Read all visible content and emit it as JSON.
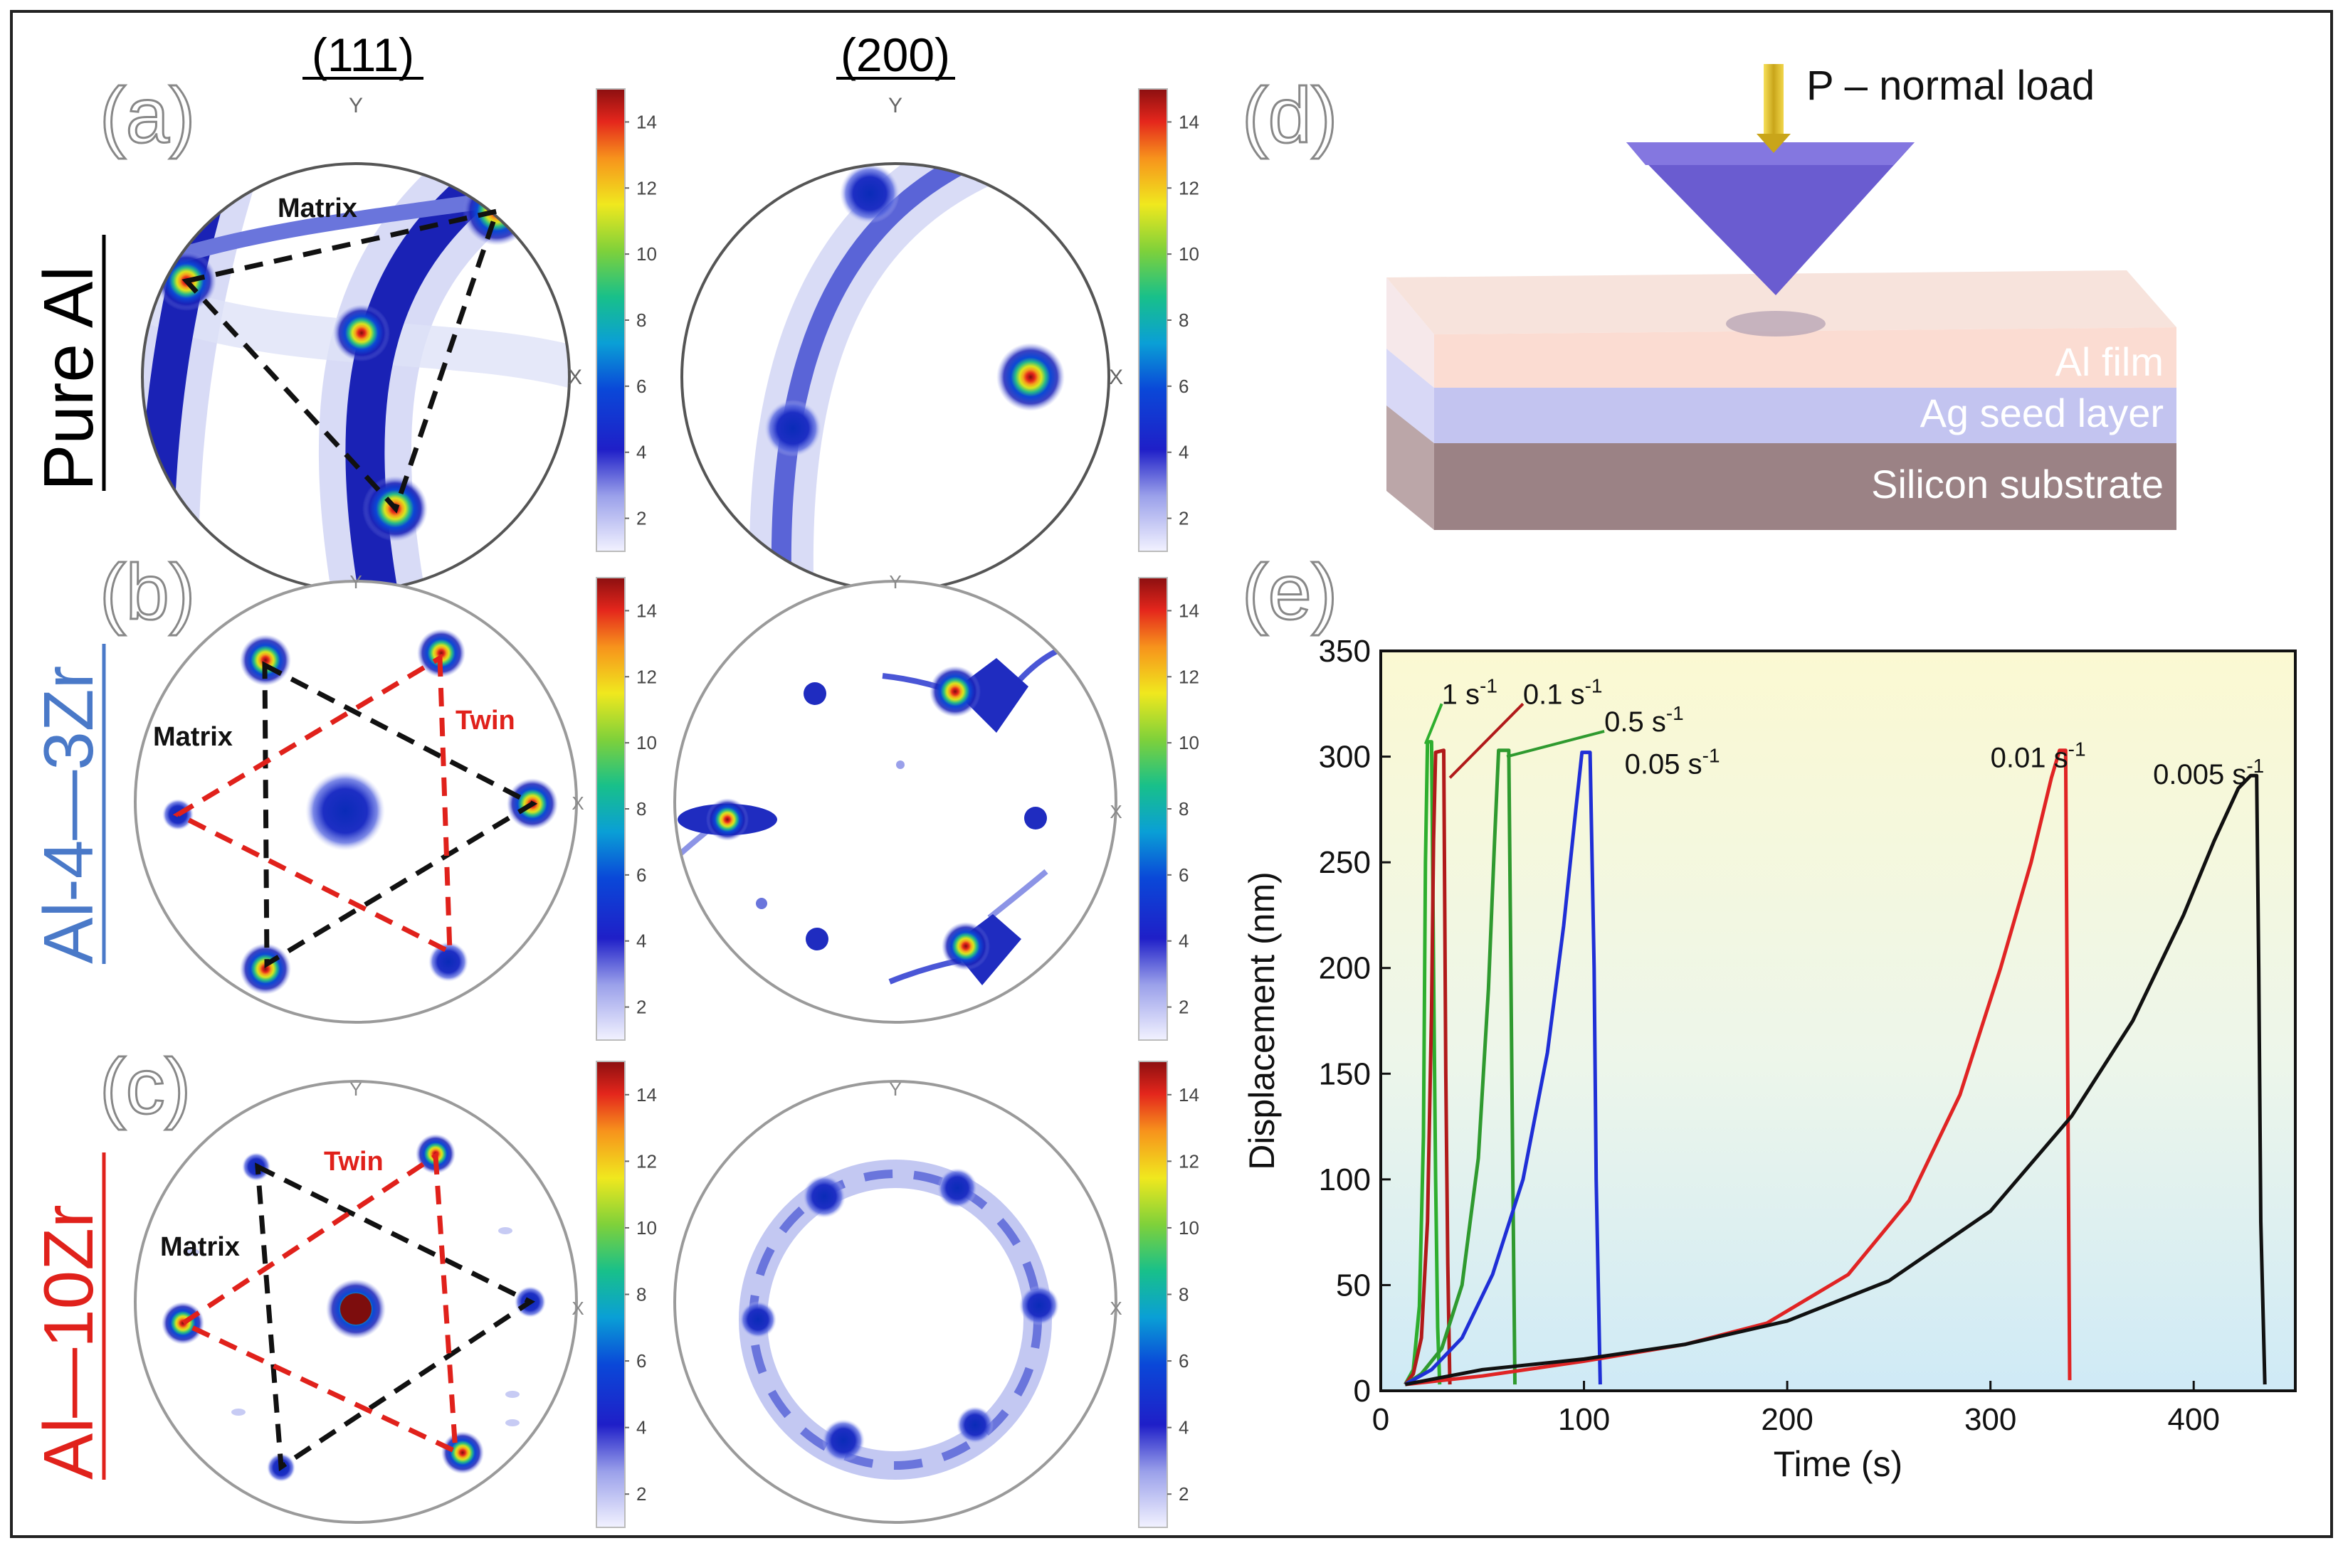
{
  "columns": {
    "c111": "(111)",
    "c200": "(200)"
  },
  "panel_labels": {
    "a": "(a)",
    "b": "(b)",
    "c": "(c)",
    "d": "(d)",
    "e": "(e)"
  },
  "rows": {
    "a": {
      "name": "Pure Al",
      "color": "#000000"
    },
    "b": {
      "name": "Al-4—3Zr",
      "color": "#4a79c8"
    },
    "c": {
      "name": "Al—10Zr",
      "color": "#e0211b"
    }
  },
  "pole_axis": {
    "y": "Y",
    "x": "X"
  },
  "annotations": {
    "matrix": "Matrix",
    "twin": "Twin"
  },
  "colorbar": {
    "ticks": [
      "14",
      "12",
      "10",
      "8",
      "6",
      "4",
      "2"
    ],
    "min": 1,
    "max": 15
  },
  "schematic": {
    "load_label": "P – normal load",
    "layers": [
      "Al film",
      "Ag seed layer",
      "Silicon substrate"
    ]
  },
  "colors": {
    "matrix_line": "#111111",
    "twin_line": "#e0211b",
    "curve_1": "#2eae2e",
    "curve_01": "#b11a1a",
    "curve_05": "#2f9a2f",
    "curve_005_fast": "#1f2fd6",
    "curve_001": "#e02424",
    "curve_0005": "#111111"
  },
  "chart_data": {
    "type": "line",
    "xlabel": "Time (s)",
    "ylabel": "Displacement (nm)",
    "xlim": [
      0,
      450
    ],
    "ylim": [
      0,
      350
    ],
    "x_ticks": [
      0,
      100,
      200,
      300,
      400
    ],
    "y_ticks": [
      0,
      50,
      100,
      150,
      200,
      250,
      300,
      350
    ],
    "series": [
      {
        "name": "1 s⁻¹",
        "rate": "1",
        "color": "#2eae2e",
        "points": [
          [
            12,
            3
          ],
          [
            16,
            10
          ],
          [
            19,
            40
          ],
          [
            21,
            120
          ],
          [
            22,
            250
          ],
          [
            23,
            307
          ],
          [
            25,
            307
          ],
          [
            26,
            200
          ],
          [
            27,
            100
          ],
          [
            28,
            30
          ],
          [
            29,
            3
          ]
        ]
      },
      {
        "name": "0.1 s⁻¹",
        "rate": "0.1",
        "color": "#b11a1a",
        "points": [
          [
            12,
            3
          ],
          [
            16,
            8
          ],
          [
            20,
            25
          ],
          [
            23,
            80
          ],
          [
            25,
            180
          ],
          [
            26,
            260
          ],
          [
            27,
            302
          ],
          [
            31,
            303
          ],
          [
            32,
            150
          ],
          [
            33,
            60
          ],
          [
            34,
            3
          ]
        ]
      },
      {
        "name": "0.5 s⁻¹",
        "rate": "0.5",
        "color": "#2f9a2f",
        "points": [
          [
            12,
            3
          ],
          [
            20,
            8
          ],
          [
            30,
            20
          ],
          [
            40,
            50
          ],
          [
            48,
            110
          ],
          [
            53,
            190
          ],
          [
            56,
            260
          ],
          [
            58,
            303
          ],
          [
            63,
            303
          ],
          [
            64,
            200
          ],
          [
            65,
            100
          ],
          [
            66,
            3
          ]
        ]
      },
      {
        "name": "0.05 s⁻¹",
        "rate": "0.05",
        "color": "#1f2fd6",
        "points": [
          [
            12,
            3
          ],
          [
            25,
            10
          ],
          [
            40,
            25
          ],
          [
            55,
            55
          ],
          [
            70,
            100
          ],
          [
            82,
            160
          ],
          [
            90,
            220
          ],
          [
            96,
            275
          ],
          [
            99,
            302
          ],
          [
            103,
            302
          ],
          [
            105,
            200
          ],
          [
            106,
            100
          ],
          [
            108,
            3
          ]
        ]
      },
      {
        "name": "0.01 s⁻¹",
        "rate": "0.01",
        "color": "#e02424",
        "points": [
          [
            12,
            3
          ],
          [
            50,
            7
          ],
          [
            100,
            14
          ],
          [
            150,
            22
          ],
          [
            190,
            32
          ],
          [
            230,
            55
          ],
          [
            260,
            90
          ],
          [
            285,
            140
          ],
          [
            305,
            200
          ],
          [
            320,
            250
          ],
          [
            330,
            290
          ],
          [
            334,
            303
          ],
          [
            337,
            303
          ],
          [
            338,
            150
          ],
          [
            339,
            5
          ]
        ]
      },
      {
        "name": "0.005 s⁻¹",
        "rate": "0.005",
        "color": "#111111",
        "points": [
          [
            12,
            3
          ],
          [
            50,
            10
          ],
          [
            100,
            15
          ],
          [
            150,
            22
          ],
          [
            200,
            33
          ],
          [
            250,
            52
          ],
          [
            300,
            85
          ],
          [
            340,
            130
          ],
          [
            370,
            175
          ],
          [
            395,
            225
          ],
          [
            410,
            260
          ],
          [
            422,
            285
          ],
          [
            428,
            291
          ],
          [
            431,
            291
          ],
          [
            432,
            200
          ],
          [
            433,
            80
          ],
          [
            435,
            3
          ]
        ]
      }
    ],
    "labels": [
      {
        "text": "1 s",
        "sup": "-1",
        "x": 30,
        "y": 325
      },
      {
        "text": "0.1 s",
        "sup": "-1",
        "x": 70,
        "y": 325
      },
      {
        "text": "0.5 s",
        "sup": "-1",
        "x": 110,
        "y": 312
      },
      {
        "text": "0.05 s",
        "sup": "-1",
        "x": 120,
        "y": 292
      },
      {
        "text": "0.01 s",
        "sup": "-1",
        "x": 300,
        "y": 295
      },
      {
        "text": "0.005 s",
        "sup": "-1",
        "x": 380,
        "y": 287
      }
    ]
  }
}
